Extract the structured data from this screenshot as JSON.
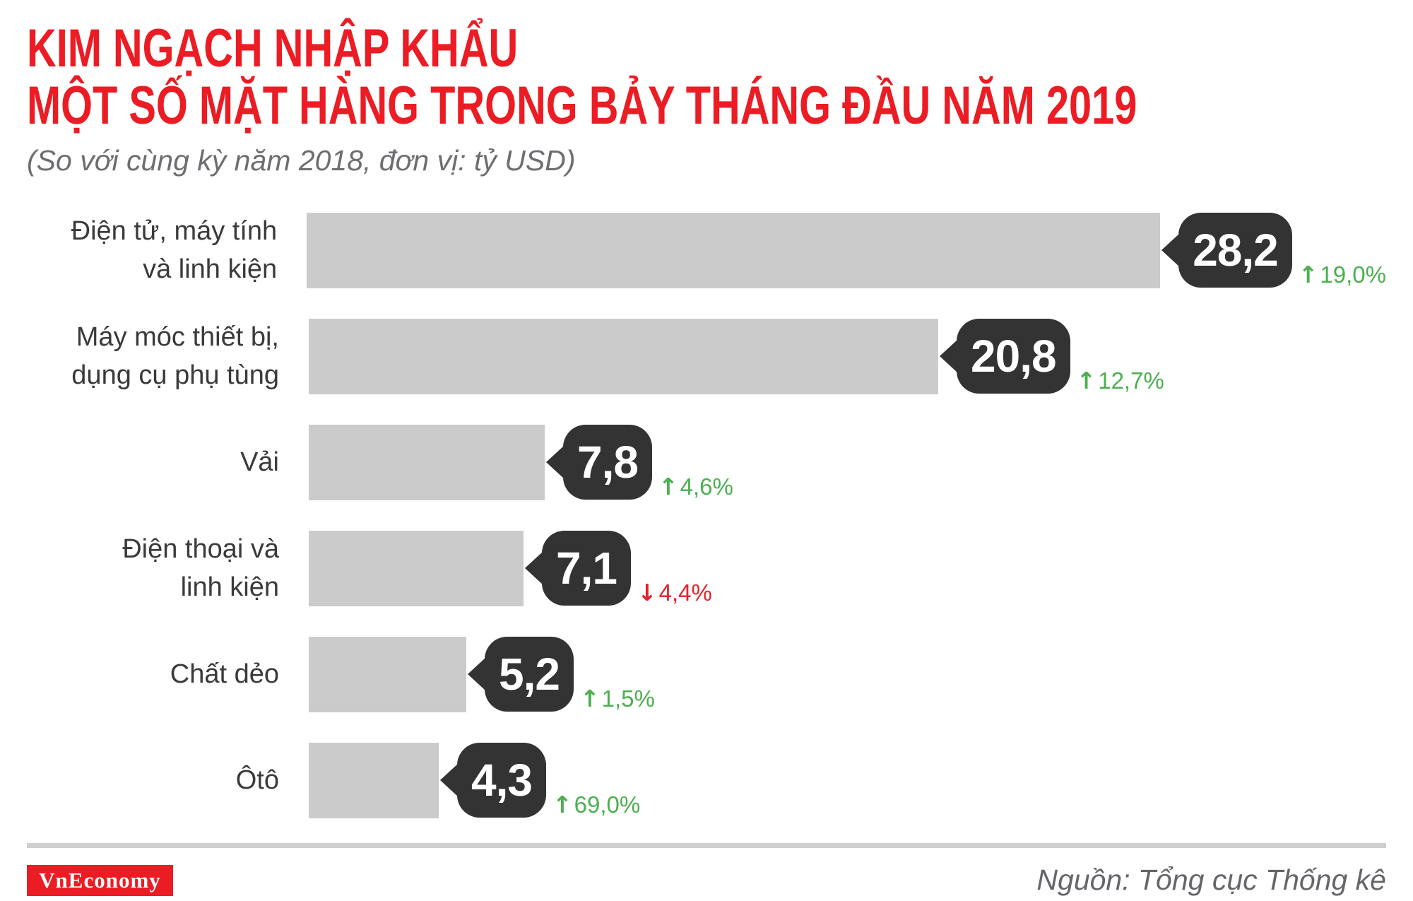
{
  "header": {
    "title_line1": "KIM NGẠCH NHẬP KHẨU",
    "title_line2": "MỘT SỐ MẶT HÀNG TRONG BẢY THÁNG ĐẦU NĂM 2019",
    "subtitle": "(So với cùng kỳ năm 2018, đơn vị: tỷ USD)"
  },
  "chart_data": {
    "type": "bar",
    "orientation": "horizontal",
    "title": "KIM NGẠCH NHẬP KHẨU MỘT SỐ MẶT HÀNG TRONG BẢY THÁNG ĐẦU NĂM 2019",
    "subtitle": "(So với cùng kỳ năm 2018, đơn vị: tỷ USD)",
    "unit": "tỷ USD",
    "xlim": [
      0,
      28.2
    ],
    "grid": false,
    "legend": false,
    "categories": [
      "Điện tử, máy tính và linh kiện",
      "Máy móc thiết bị, dụng cụ phụ tùng",
      "Vải",
      "Điện thoại và linh kiện",
      "Chất dẻo",
      "Ôtô"
    ],
    "values": [
      28.2,
      20.8,
      7.8,
      7.1,
      5.2,
      4.3
    ],
    "changes_percent": [
      19.0,
      12.7,
      4.6,
      -4.4,
      1.5,
      69.0
    ],
    "rows": [
      {
        "label": "Điện tử, máy tính\nvà linh kiện",
        "value": 28.2,
        "value_label": "28,2",
        "change": {
          "arrow": "↑",
          "text": "19,0%",
          "direction": "up"
        }
      },
      {
        "label": "Máy móc thiết bị,\ndụng cụ phụ tùng",
        "value": 20.8,
        "value_label": "20,8",
        "change": {
          "arrow": "↑",
          "text": "12,7%",
          "direction": "up"
        }
      },
      {
        "label": "Vải",
        "value": 7.8,
        "value_label": "7,8",
        "change": {
          "arrow": "↑",
          "text": "4,6%",
          "direction": "up"
        }
      },
      {
        "label": "Điện thoại và\nlinh kiện",
        "value": 7.1,
        "value_label": "7,1",
        "change": {
          "arrow": "↓",
          "text": "4,4%",
          "direction": "down"
        }
      },
      {
        "label": "Chất dẻo",
        "value": 5.2,
        "value_label": "5,2",
        "change": {
          "arrow": "↑",
          "text": "1,5%",
          "direction": "up"
        }
      },
      {
        "label": "Ôtô",
        "value": 4.3,
        "value_label": "4,3",
        "change": {
          "arrow": "↑",
          "text": "69,0%",
          "direction": "up"
        }
      }
    ]
  },
  "footer": {
    "logo_text": "VnEconomy",
    "source": "Nguồn: Tổng cục Thống kê"
  },
  "colors": {
    "accent_red": "#EC1C24",
    "bar_gray": "#CBCBCB",
    "bubble_dark": "#333333",
    "up_green": "#4CAF50",
    "down_red": "#E1242B",
    "subtitle_gray": "#6D6E71"
  }
}
